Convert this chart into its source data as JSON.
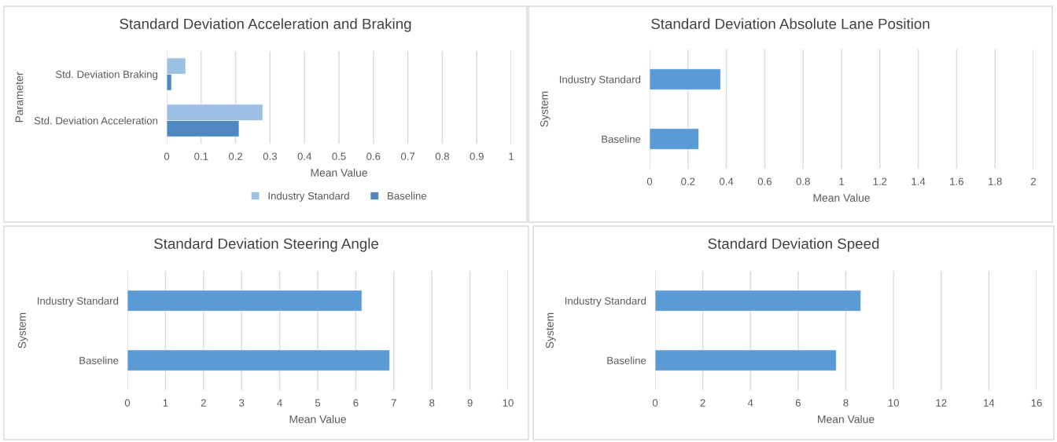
{
  "chart_data": [
    {
      "type": "bar",
      "orientation": "horizontal",
      "title": "Standard Deviation Acceleration and Braking",
      "xlabel": "Mean Value",
      "ylabel": "Parameter",
      "categories": [
        "Std. Deviation Braking",
        "Std. Deviation Acceleration"
      ],
      "series": [
        {
          "name": "Industry Standard",
          "color": "#9dc0e5",
          "values": [
            0.055,
            0.279
          ]
        },
        {
          "name": "Baseline",
          "color": "#4f88c0",
          "values": [
            0.014,
            0.21
          ]
        }
      ],
      "xlim": [
        0,
        1
      ],
      "xticks": [
        0,
        0.1,
        0.2,
        0.3,
        0.4,
        0.5,
        0.6,
        0.7,
        0.8,
        0.9,
        1
      ],
      "grid": "x",
      "legend": "bottom"
    },
    {
      "type": "bar",
      "orientation": "horizontal",
      "title": "Standard Deviation Absolute Lane Position",
      "xlabel": "Mean Value",
      "ylabel": "System",
      "categories": [
        "Industry Standard",
        "Baseline"
      ],
      "values": [
        0.37,
        0.256
      ],
      "color": "#5b9bd5",
      "xlim": [
        0,
        2
      ],
      "xticks": [
        0,
        0.2,
        0.4,
        0.6,
        0.8,
        1,
        1.2,
        1.4,
        1.6,
        1.8,
        2
      ],
      "grid": "x"
    },
    {
      "type": "bar",
      "orientation": "horizontal",
      "title": "Standard Deviation Steering Angle",
      "xlabel": "Mean Value",
      "ylabel": "System",
      "categories": [
        "Industry Standard",
        "Baseline"
      ],
      "values": [
        6.16,
        6.89
      ],
      "color": "#5b9bd5",
      "xlim": [
        0,
        10
      ],
      "xticks": [
        0,
        1,
        2,
        3,
        4,
        5,
        6,
        7,
        8,
        9,
        10
      ],
      "grid": "x"
    },
    {
      "type": "bar",
      "orientation": "horizontal",
      "title": "Standard Deviation Speed",
      "xlabel": "Mean Value",
      "ylabel": "System",
      "categories": [
        "Industry Standard",
        "Baseline"
      ],
      "values": [
        8.63,
        7.6
      ],
      "color": "#5b9bd5",
      "xlim": [
        0,
        16
      ],
      "xticks": [
        0,
        2,
        4,
        6,
        8,
        10,
        12,
        14,
        16
      ],
      "grid": "x"
    }
  ]
}
